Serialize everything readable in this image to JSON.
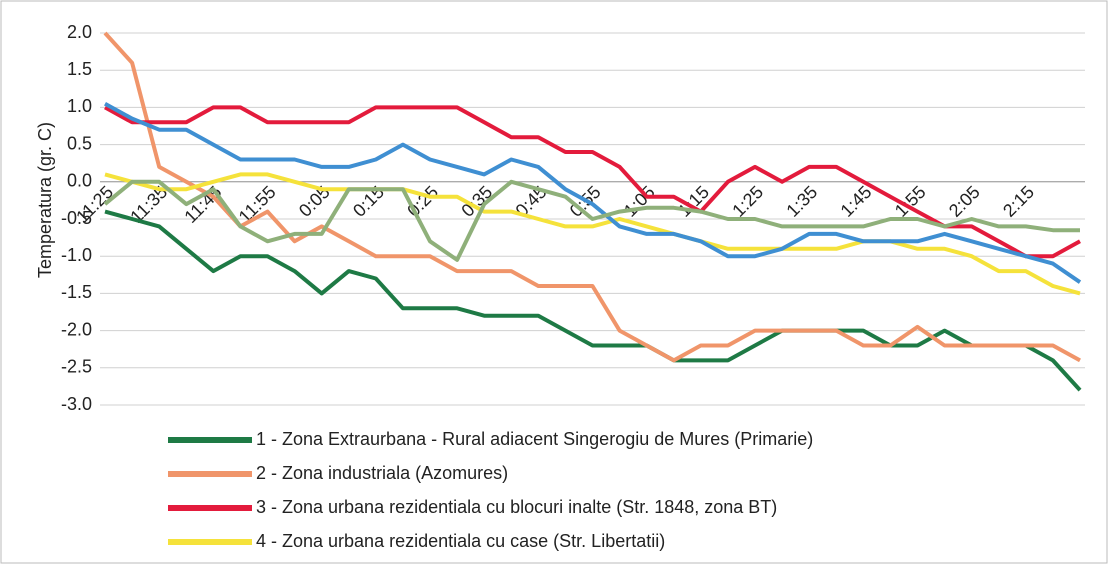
{
  "chart_data": {
    "type": "line",
    "y_label": "Temperatura (gr. C)",
    "categories": [
      "11:25",
      null,
      "11:35",
      null,
      "11:45",
      null,
      "11:55",
      null,
      "0:05",
      null,
      "0:15",
      null,
      "0:25",
      null,
      "0:35",
      null,
      "0:45",
      null,
      "0:55",
      null,
      "1:05",
      null,
      "1:15",
      null,
      "1:25",
      null,
      "1:35",
      null,
      "1:45",
      null,
      "1:55",
      null,
      "2:05",
      null,
      "2:15",
      null,
      null
    ],
    "ylim": [
      -3,
      2
    ],
    "yticks": [
      {
        "value": -3,
        "label": "-3.0"
      },
      {
        "value": -2.5,
        "label": "-2.5"
      },
      {
        "value": -2,
        "label": "-2.0"
      },
      {
        "value": -1.5,
        "label": "-1.5"
      },
      {
        "value": -1,
        "label": "-1.0"
      },
      {
        "value": -0.5,
        "label": "-0.5"
      },
      {
        "value": 0,
        "label": "0.0"
      },
      {
        "value": 0.5,
        "label": "0.5"
      },
      {
        "value": 1,
        "label": "1.0"
      },
      {
        "value": 1.5,
        "label": "1.5"
      },
      {
        "value": 2,
        "label": "2.0"
      }
    ],
    "grid": true,
    "legend": "bottom",
    "series": [
      {
        "name": "1 - Zona Extraurbana - Rural adiacent Singerogiu de Mures (Primarie)",
        "color": "#1e7a45",
        "values": [
          -0.4,
          -0.5,
          -0.6,
          -0.9,
          -1.2,
          -1.0,
          -1.0,
          -1.2,
          -1.5,
          -1.2,
          -1.3,
          -1.7,
          -1.7,
          -1.7,
          -1.8,
          -1.8,
          -1.8,
          -2.0,
          -2.2,
          -2.2,
          -2.2,
          -2.4,
          -2.4,
          -2.4,
          -2.2,
          -2.0,
          -2.0,
          -2.0,
          -2.0,
          -2.2,
          -2.2,
          -2.0,
          -2.2,
          -2.2,
          -2.2,
          -2.4,
          -2.8
        ]
      },
      {
        "name": "2 - Zona industriala (Azomures)",
        "color": "#f0956a",
        "values": [
          2.0,
          1.6,
          0.2,
          0.0,
          -0.2,
          -0.6,
          -0.4,
          -0.8,
          -0.6,
          -0.8,
          -1.0,
          -1.0,
          -1.0,
          -1.2,
          -1.2,
          -1.2,
          -1.4,
          -1.4,
          -1.4,
          -2.0,
          -2.2,
          -2.4,
          -2.2,
          -2.2,
          -2.0,
          -2.0,
          -2.0,
          -2.0,
          -2.2,
          -2.2,
          -1.95,
          -2.2,
          -2.2,
          -2.2,
          -2.2,
          -2.2,
          -2.4
        ]
      },
      {
        "name": "3 - Zona urbana rezidentiala cu blocuri inalte (Str. 1848, zona BT)",
        "color": "#e31b3c",
        "values": [
          1.0,
          0.8,
          0.8,
          0.8,
          1.0,
          1.0,
          0.8,
          0.8,
          0.8,
          0.8,
          1.0,
          1.0,
          1.0,
          1.0,
          0.8,
          0.6,
          0.6,
          0.4,
          0.4,
          0.2,
          -0.2,
          -0.2,
          -0.4,
          0.0,
          0.2,
          0.0,
          0.2,
          0.2,
          0.0,
          -0.2,
          -0.4,
          -0.6,
          -0.6,
          -0.8,
          -1.0,
          -1.0,
          -0.8
        ]
      },
      {
        "name": "4 - Zona urbana rezidentiala cu case (Str. Libertatii)",
        "color": "#f5e23b",
        "values": [
          0.1,
          0.0,
          -0.1,
          -0.1,
          0.0,
          0.1,
          0.1,
          0.0,
          -0.1,
          -0.1,
          -0.1,
          -0.1,
          -0.2,
          -0.2,
          -0.4,
          -0.4,
          -0.5,
          -0.6,
          -0.6,
          -0.5,
          -0.6,
          -0.7,
          -0.8,
          -0.9,
          -0.9,
          -0.9,
          -0.9,
          -0.9,
          -0.8,
          -0.8,
          -0.9,
          -0.9,
          -1.0,
          -1.2,
          -1.2,
          -1.4,
          -1.5
        ]
      },
      {
        "color": "#3f8fd2",
        "values": [
          1.05,
          0.85,
          0.7,
          0.7,
          0.5,
          0.3,
          0.3,
          0.3,
          0.2,
          0.2,
          0.3,
          0.5,
          0.3,
          0.2,
          0.1,
          0.3,
          0.2,
          -0.1,
          -0.3,
          -0.6,
          -0.7,
          -0.7,
          -0.8,
          -1.0,
          -1.0,
          -0.9,
          -0.7,
          -0.7,
          -0.8,
          -0.8,
          -0.8,
          -0.7,
          -0.8,
          -0.9,
          -1.0,
          -1.1,
          -1.35
        ]
      },
      {
        "color": "#8fb07a",
        "values": [
          -0.3,
          0.0,
          0.0,
          -0.3,
          -0.1,
          -0.6,
          -0.8,
          -0.7,
          -0.7,
          -0.1,
          -0.1,
          -0.1,
          -0.8,
          -1.05,
          -0.3,
          0.0,
          -0.1,
          -0.2,
          -0.5,
          -0.4,
          -0.35,
          -0.35,
          -0.4,
          -0.5,
          -0.5,
          -0.6,
          -0.6,
          -0.6,
          -0.6,
          -0.5,
          -0.5,
          -0.6,
          -0.5,
          -0.6,
          -0.6,
          -0.65,
          -0.65
        ]
      }
    ]
  }
}
